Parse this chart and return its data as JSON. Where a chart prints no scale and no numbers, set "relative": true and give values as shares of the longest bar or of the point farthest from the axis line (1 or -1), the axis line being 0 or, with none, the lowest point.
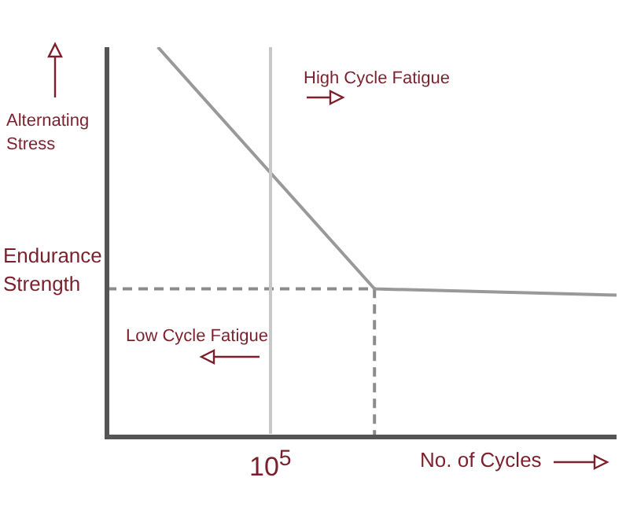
{
  "chart_data": {
    "type": "line",
    "relative": true,
    "xlabel": "No. of Cycles",
    "ylabel": "Alternating Stress",
    "marker": "none",
    "categories": [
      null,
      null,
      null,
      null,
      null,
      null,
      null,
      null,
      null,
      null,
      null,
      null,
      null,
      null,
      null,
      null,
      null,
      null,
      null,
      null,
      null,
      null,
      null,
      null,
      null,
      null,
      null,
      null,
      null,
      null,
      null,
      null,
      null,
      null,
      null,
      null,
      null,
      null,
      null,
      null,
      null
    ],
    "series": [
      {
        "color": "#999999",
        "line_style": "solid",
        "values": [
          null,
          null,
          null,
          null,
          1,
          null,
          null,
          null,
          null,
          null,
          null,
          null,
          null,
          null,
          null,
          null,
          null,
          null,
          null,
          null,
          null,
          0.38,
          null,
          null,
          null,
          null,
          null,
          null,
          null,
          null,
          null,
          null,
          null,
          null,
          null,
          null,
          null,
          null,
          null,
          null,
          0.364
        ]
      }
    ],
    "ref_lines": [
      {
        "axis": "y",
        "value": 0.38,
        "label": "Endurance Strength",
        "color": "#8c8c8c",
        "line_style": "dashed"
      }
    ],
    "annotations": [
      "10$^{5}$",
      "High Cycle Fatigue",
      "Low Cycle Fatigue"
    ]
  }
}
